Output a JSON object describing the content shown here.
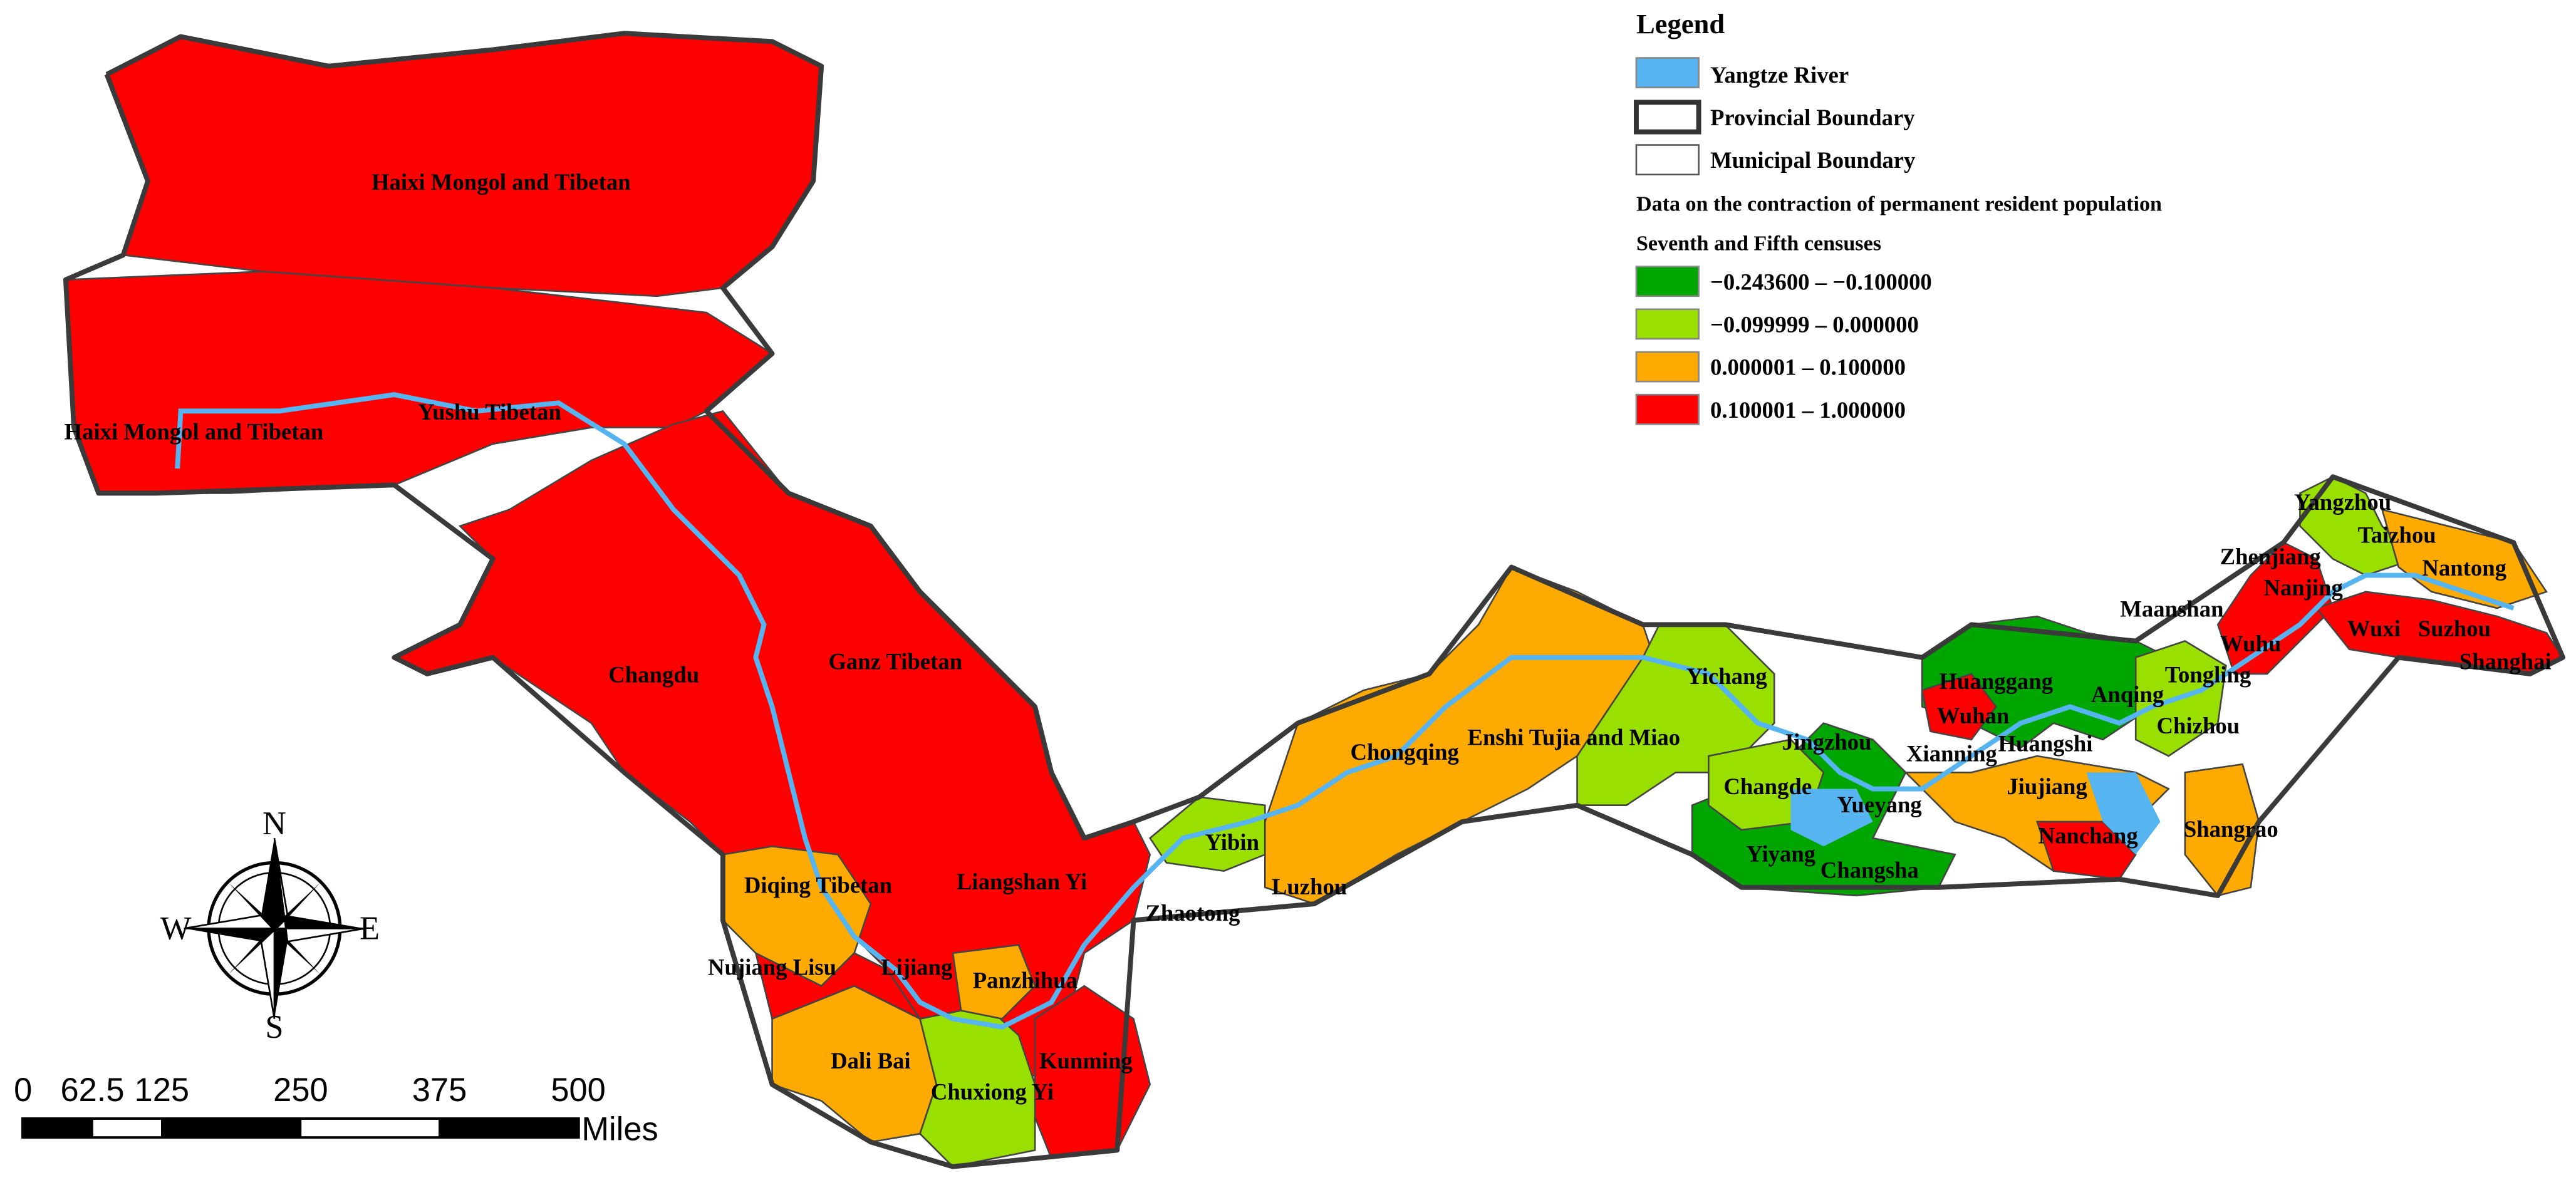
{
  "legend": {
    "title": "Legend",
    "items": [
      "Yangtze River",
      "Provincial Boundary",
      "Municipal Boundary"
    ],
    "data_title": "Data on the contraction of permanent resident population",
    "subtitle": "Seventh and Fifth censuses",
    "river_color": "#56b4f0",
    "classes": [
      {
        "label": "−0.243600 – −0.100000",
        "color": "#00a600"
      },
      {
        "label": "−0.099999 – 0.000000",
        "color": "#99e000"
      },
      {
        "label": "0.000001 – 0.100000",
        "color": "#ffaa00"
      },
      {
        "label": "0.100001 – 1.000000",
        "color": "#ff0000"
      }
    ]
  },
  "labels": [
    "Haixi Mongol and Tibetan",
    "Haixi Mongol and Tibetan",
    "Yushu Tibetan",
    "Changdu",
    "Ganz Tibetan",
    "Diqing Tibetan",
    "Liangshan Yi",
    "Zhaotong",
    "Yibin",
    "Luzhou",
    "Chongqing",
    "Enshi Tujia and Miao",
    "Yichang",
    "Nujiang Lisu",
    "Lijiang",
    "Panzhihua",
    "Dali Bai",
    "Chuxiong Yi",
    "Kunming",
    "Jingzhou",
    "Changde",
    "Yueyang",
    "Xianning",
    "Yiyang",
    "Changsha",
    "Huanggang",
    "Wuhan",
    "Huangshi",
    "Jiujiang",
    "Nanchang",
    "Shangrao",
    "Anqing",
    "Tongling",
    "Chizhou",
    "Maanshan",
    "Wuhu",
    "Zhenjiang",
    "Nanjing",
    "Yangzhou",
    "Taizhou",
    "Nantong",
    "Wuxi",
    "Suzhou",
    "Shanghai"
  ],
  "compass": {
    "n": "N",
    "e": "E",
    "s": "S",
    "w": "W"
  },
  "scale_bar": {
    "ticks": [
      0,
      62.5,
      125,
      250,
      375,
      500
    ],
    "unit": "Miles"
  }
}
